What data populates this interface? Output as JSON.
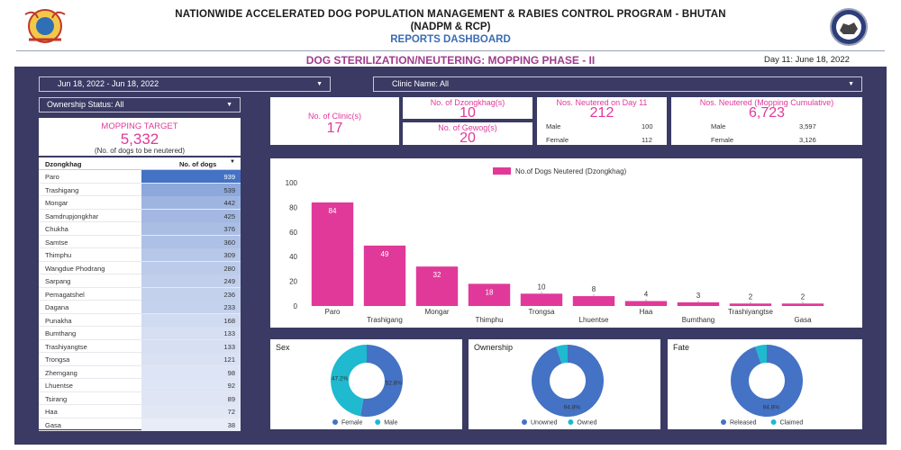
{
  "header": {
    "title_line1": "NATIONWIDE ACCELERATED DOG POPULATION MANAGEMENT & RABIES CONTROL PROGRAM - BHUTAN",
    "title_line2": "(NADPM & RCP)",
    "title_line3": "REPORTS DASHBOARD",
    "subtitle": "DOG STERILIZATION/NEUTERING: MOPPING PHASE - II",
    "day_label": "Day 11: June 18, 2022"
  },
  "filters": {
    "date_range": "Jun 18, 2022 - Jun 18, 2022",
    "clinic": "Clinic Name: All",
    "ownership": "Ownership Status: All"
  },
  "mopping_target": {
    "label": "MOPPING TARGET",
    "value": "5,332",
    "sub": "(No. of dogs to be neutered)"
  },
  "kpis": {
    "clinics": {
      "label": "No. of Clinic(s)",
      "value": "17"
    },
    "dzongkhags": {
      "label": "No. of Dzongkhag(s)",
      "value": "10"
    },
    "gewogs": {
      "label": "No. of Gewog(s)",
      "value": "20"
    },
    "day11": {
      "label": "Nos. Neutered on Day 11",
      "value": "212",
      "male_label": "Male",
      "male": "100",
      "female_label": "Female",
      "female": "112"
    },
    "cumulative": {
      "label": "Nos. Neutered (Mopping Cumulative)",
      "value": "6,723",
      "male_label": "Male",
      "male": "3,597",
      "female_label": "Female",
      "female": "3,126"
    }
  },
  "table": {
    "col1": "Dzongkhag",
    "col2": "No. of dogs",
    "sort_icon": "sort-desc-icon",
    "rows": [
      {
        "name": "Paro",
        "value": "939"
      },
      {
        "name": "Trashigang",
        "value": "539"
      },
      {
        "name": "Mongar",
        "value": "442"
      },
      {
        "name": "Samdrupjongkhar",
        "value": "425"
      },
      {
        "name": "Chukha",
        "value": "376"
      },
      {
        "name": "Samtse",
        "value": "360"
      },
      {
        "name": "Thimphu",
        "value": "309"
      },
      {
        "name": "Wangdue Phodrang",
        "value": "280"
      },
      {
        "name": "Sarpang",
        "value": "249"
      },
      {
        "name": "Pemagatshel",
        "value": "236"
      },
      {
        "name": "Dagana",
        "value": "233"
      },
      {
        "name": "Punakha",
        "value": "168"
      },
      {
        "name": "Bumthang",
        "value": "133"
      },
      {
        "name": "Trashiyangtse",
        "value": "133"
      },
      {
        "name": "Trongsa",
        "value": "121"
      },
      {
        "name": "Zhemgang",
        "value": "98"
      },
      {
        "name": "Lhuentse",
        "value": "92"
      },
      {
        "name": "Tsirang",
        "value": "89"
      },
      {
        "name": "Haa",
        "value": "72"
      },
      {
        "name": "Gasa",
        "value": "38"
      }
    ]
  },
  "colors": {
    "panel": "#3a3a64",
    "pink": "#e0399a",
    "blue": "#4472c4",
    "teal": "#1fb9d0"
  },
  "chart_data": [
    {
      "type": "bar",
      "legend": "No.of Dogs Neutered (Dzongkhag)",
      "legend_position": "top",
      "categories": [
        "Paro",
        "Trashigang",
        "Mongar",
        "Thimphu",
        "Trongsa",
        "Lhuentse",
        "Haa",
        "Bumthang",
        "Trashiyangtse",
        "Gasa"
      ],
      "values": [
        84,
        49,
        32,
        18,
        10,
        8,
        4,
        3,
        2,
        2
      ],
      "ylim": [
        0,
        100
      ],
      "yticks": [
        0,
        20,
        40,
        60,
        80,
        100
      ],
      "grid": false
    },
    {
      "type": "pie",
      "title": "Sex",
      "labels": [
        "Female",
        "Male"
      ],
      "values": [
        52.8,
        47.2
      ],
      "value_labels": [
        "52.8%",
        "47.2%"
      ],
      "colors": [
        "#4472c4",
        "#1fb9d0"
      ]
    },
    {
      "type": "pie",
      "title": "Ownership",
      "labels": [
        "Unowned",
        "Owned"
      ],
      "values": [
        94.8,
        5.2
      ],
      "value_labels": [
        "94.8%",
        ""
      ],
      "colors": [
        "#4472c4",
        "#1fb9d0"
      ]
    },
    {
      "type": "pie",
      "title": "Fate",
      "labels": [
        "Released",
        "Claimed"
      ],
      "values": [
        94.8,
        5.2
      ],
      "value_labels": [
        "94.8%",
        ""
      ],
      "colors": [
        "#4472c4",
        "#1fb9d0"
      ]
    }
  ]
}
